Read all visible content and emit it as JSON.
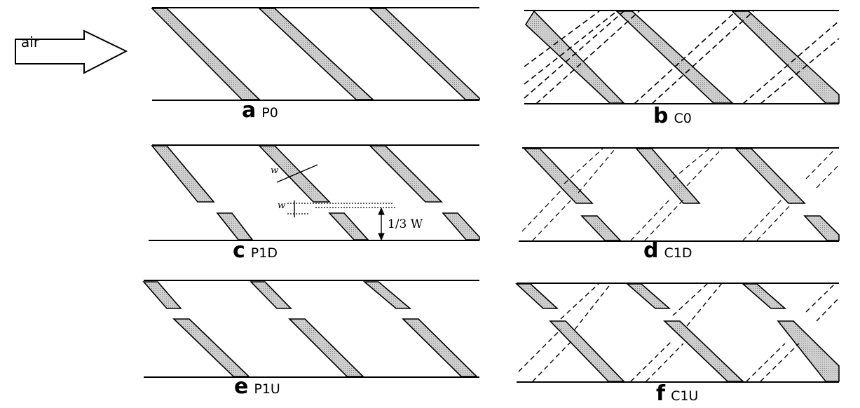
{
  "flow_label": "air",
  "panels": [
    {
      "letter": "a",
      "code": "P0"
    },
    {
      "letter": "b",
      "code": "C0"
    },
    {
      "letter": "c",
      "code": "P1D"
    },
    {
      "letter": "d",
      "code": "C1D"
    },
    {
      "letter": "e",
      "code": "P1U"
    },
    {
      "letter": "f",
      "code": "C1U"
    }
  ],
  "dimensions": {
    "w_top": "w",
    "w_side": "w",
    "fraction": "1/3 W"
  },
  "colors": {
    "rib_fill": "#c8c8c8",
    "line": "#000000"
  }
}
